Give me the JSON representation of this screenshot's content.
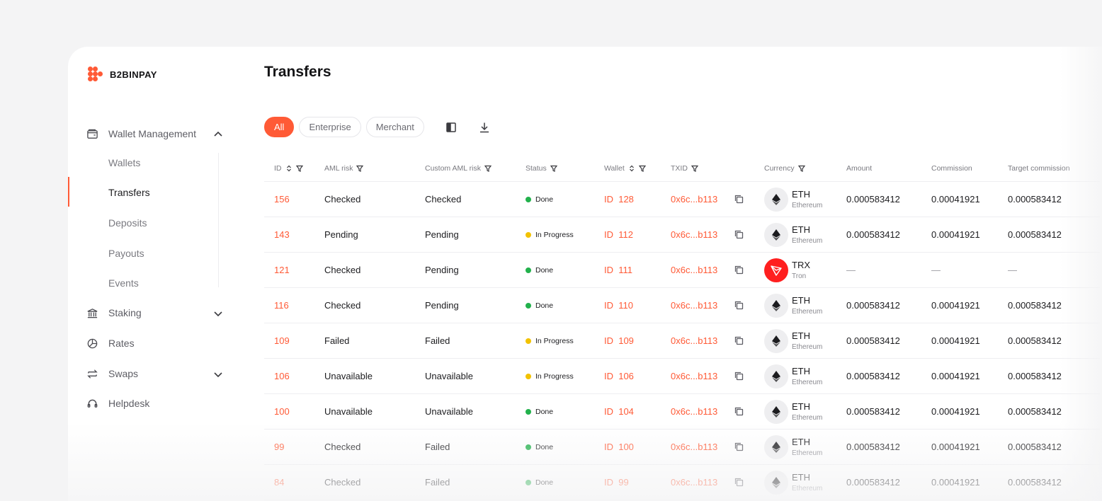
{
  "brand": {
    "name": "B2BINPAY",
    "accent": "#ff5a36"
  },
  "sidebar": {
    "items": [
      {
        "label": "Wallet Management",
        "icon": "wallet-icon",
        "expanded": true
      },
      {
        "label": "Staking",
        "icon": "bank-icon",
        "expanded": false
      },
      {
        "label": "Rates",
        "icon": "pie-chart-icon"
      },
      {
        "label": "Swaps",
        "icon": "swap-icon",
        "expanded": false
      },
      {
        "label": "Helpdesk",
        "icon": "headset-icon"
      }
    ],
    "sub_items": [
      "Wallets",
      "Transfers",
      "Deposits",
      "Payouts",
      "Events"
    ],
    "active_sub": "Transfers"
  },
  "page": {
    "title": "Transfers"
  },
  "filters": {
    "chips": [
      "All",
      "Enterprise",
      "Merchant"
    ],
    "active": "All"
  },
  "table": {
    "headers": {
      "id": "ID",
      "aml": "AML risk",
      "custom_aml": "Custom AML risk",
      "status": "Status",
      "wallet": "Wallet",
      "txid": "TXID",
      "currency": "Currency",
      "amount": "Amount",
      "commission": "Commission",
      "target": "Target commission"
    },
    "rows": [
      {
        "id": "156",
        "aml": "Checked",
        "custom_aml": "Checked",
        "status": "Done",
        "wallet": "ID  128",
        "txid": "0x6c...b113",
        "code": "ETH",
        "name": "Ethereum",
        "amount": "0.000583412",
        "commission": "0.00041921",
        "target": "0.000583412"
      },
      {
        "id": "143",
        "aml": "Pending",
        "custom_aml": "Pending",
        "status": "In Progress",
        "wallet": "ID  112",
        "txid": "0x6c...b113",
        "code": "ETH",
        "name": "Ethereum",
        "amount": "0.000583412",
        "commission": "0.00041921",
        "target": "0.000583412"
      },
      {
        "id": "121",
        "aml": "Checked",
        "custom_aml": "Pending",
        "status": "Done",
        "wallet": "ID  111",
        "txid": "0x6c...b113",
        "code": "TRX",
        "name": "Tron",
        "amount": "—",
        "commission": "—",
        "target": "—"
      },
      {
        "id": "116",
        "aml": "Checked",
        "custom_aml": "Pending",
        "status": "Done",
        "wallet": "ID  110",
        "txid": "0x6c...b113",
        "code": "ETH",
        "name": "Ethereum",
        "amount": "0.000583412",
        "commission": "0.00041921",
        "target": "0.000583412"
      },
      {
        "id": "109",
        "aml": "Failed",
        "custom_aml": "Failed",
        "status": "In Progress",
        "wallet": "ID  109",
        "txid": "0x6c...b113",
        "code": "ETH",
        "name": "Ethereum",
        "amount": "0.000583412",
        "commission": "0.00041921",
        "target": "0.000583412"
      },
      {
        "id": "106",
        "aml": "Unavailable",
        "custom_aml": "Unavailable",
        "status": "In Progress",
        "wallet": "ID  106",
        "txid": "0x6c...b113",
        "code": "ETH",
        "name": "Ethereum",
        "amount": "0.000583412",
        "commission": "0.00041921",
        "target": "0.000583412"
      },
      {
        "id": "100",
        "aml": "Unavailable",
        "custom_aml": "Unavailable",
        "status": "Done",
        "wallet": "ID  104",
        "txid": "0x6c...b113",
        "code": "ETH",
        "name": "Ethereum",
        "amount": "0.000583412",
        "commission": "0.00041921",
        "target": "0.000583412"
      },
      {
        "id": "99",
        "aml": "Checked",
        "custom_aml": "Failed",
        "status": "Done",
        "wallet": "ID  100",
        "txid": "0x6c...b113",
        "code": "ETH",
        "name": "Ethereum",
        "amount": "0.000583412",
        "commission": "0.00041921",
        "target": "0.000583412"
      },
      {
        "id": "84",
        "aml": "Checked",
        "custom_aml": "Failed",
        "status": "Done",
        "wallet": "ID  99",
        "txid": "0x6c...b113",
        "code": "ETH",
        "name": "Ethereum",
        "amount": "0.000583412",
        "commission": "0.00041921",
        "target": "0.000583412"
      }
    ]
  },
  "colors": {
    "done": "#22b14c",
    "in_progress": "#f2c200",
    "tron": "#ff1f1f"
  }
}
